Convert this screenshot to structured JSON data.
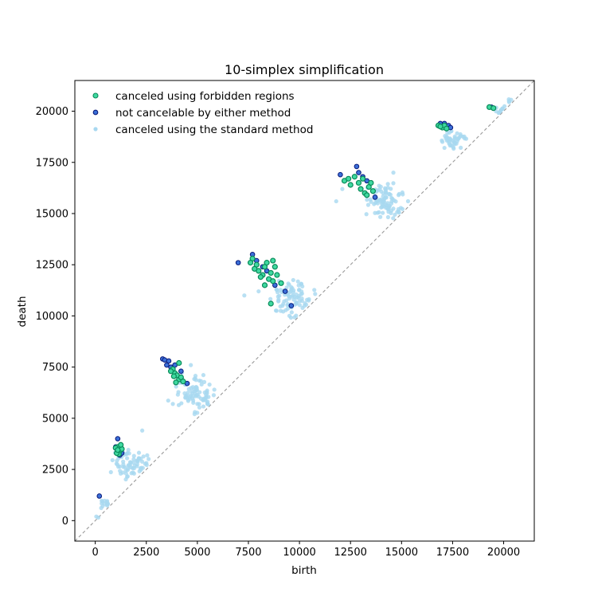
{
  "chart_data": {
    "type": "scatter",
    "title": "10-simplex simplification",
    "xlabel": "birth",
    "ylabel": "death",
    "xlim": [
      -1000,
      21500
    ],
    "ylim": [
      -1000,
      21500
    ],
    "xticks": [
      0,
      2500,
      5000,
      7500,
      10000,
      12500,
      15000,
      17500,
      20000
    ],
    "yticks": [
      0,
      2500,
      5000,
      7500,
      10000,
      12500,
      15000,
      17500,
      20000
    ],
    "grid": false,
    "legend_position": "top-left",
    "diagonal": {
      "style": "dashed",
      "color": "#999999"
    },
    "series": [
      {
        "name": "canceled using the standard method",
        "color": "#a8d8f0",
        "clusters": [
          {
            "center": [
              400,
              850
            ],
            "spread": [
              180,
              150
            ],
            "count": 14
          },
          {
            "center": [
              1700,
              2750
            ],
            "spread": [
              420,
              380
            ],
            "count": 70
          },
          {
            "center": [
              4900,
              6300
            ],
            "spread": [
              450,
              450
            ],
            "count": 85
          },
          {
            "center": [
              9600,
              10900
            ],
            "spread": [
              480,
              450
            ],
            "count": 90
          },
          {
            "center": [
              14100,
              15500
            ],
            "spread": [
              450,
              420
            ],
            "count": 90
          },
          {
            "center": [
              17600,
              18600
            ],
            "spread": [
              300,
              260
            ],
            "count": 45
          },
          {
            "center": [
              19800,
              20000
            ],
            "spread": [
              120,
              110
            ],
            "count": 10
          },
          {
            "center": [
              20300,
              20400
            ],
            "spread": [
              80,
              50
            ],
            "count": 4
          }
        ],
        "points": [
          [
            2300,
            4400
          ],
          [
            50,
            200
          ],
          [
            150,
            150
          ],
          [
            12100,
            16200
          ],
          [
            11800,
            15600
          ],
          [
            7300,
            11000
          ],
          [
            8000,
            11200
          ],
          [
            5000,
            5700
          ],
          [
            3800,
            5700
          ],
          [
            17000,
            18500
          ],
          [
            1900,
            2300
          ],
          [
            14600,
            17000
          ]
        ]
      },
      {
        "name": "canceled using forbidden regions",
        "color": "#14c48c",
        "points": [
          [
            1100,
            3600
          ],
          [
            1000,
            3550
          ],
          [
            1200,
            3400
          ],
          [
            1150,
            3250
          ],
          [
            1050,
            3300
          ],
          [
            1300,
            3500
          ],
          [
            1250,
            3700
          ],
          [
            1100,
            3450
          ],
          [
            3800,
            7400
          ],
          [
            3900,
            7200
          ],
          [
            4100,
            6900
          ],
          [
            4000,
            7100
          ],
          [
            3700,
            7300
          ],
          [
            4300,
            6800
          ],
          [
            4200,
            7000
          ],
          [
            3950,
            6750
          ],
          [
            4100,
            7700
          ],
          [
            3850,
            7050
          ],
          [
            7700,
            12800
          ],
          [
            7900,
            12500
          ],
          [
            8000,
            12200
          ],
          [
            8200,
            12000
          ],
          [
            8300,
            12400
          ],
          [
            8500,
            11800
          ],
          [
            8600,
            12100
          ],
          [
            8700,
            11700
          ],
          [
            8900,
            12000
          ],
          [
            8400,
            12600
          ],
          [
            8100,
            11900
          ],
          [
            7800,
            12300
          ],
          [
            8800,
            12400
          ],
          [
            9100,
            11600
          ],
          [
            8600,
            10600
          ],
          [
            8300,
            11500
          ],
          [
            7600,
            12600
          ],
          [
            8700,
            12700
          ],
          [
            12200,
            16600
          ],
          [
            12500,
            16400
          ],
          [
            12900,
            16500
          ],
          [
            13000,
            16200
          ],
          [
            13200,
            16000
          ],
          [
            13400,
            16300
          ],
          [
            13500,
            16500
          ],
          [
            13600,
            16100
          ],
          [
            13100,
            16700
          ],
          [
            12700,
            16800
          ],
          [
            13300,
            15900
          ],
          [
            12400,
            16700
          ],
          [
            16800,
            19300
          ],
          [
            17000,
            19200
          ],
          [
            17100,
            19300
          ],
          [
            17200,
            19150
          ],
          [
            16900,
            19250
          ],
          [
            19300,
            20200
          ],
          [
            19500,
            20150
          ]
        ]
      },
      {
        "name": "not cancelable by either method",
        "color": "#2234b8",
        "points": [
          [
            200,
            1200
          ],
          [
            1100,
            4000
          ],
          [
            1200,
            3200
          ],
          [
            1000,
            3600
          ],
          [
            1300,
            3300
          ],
          [
            3300,
            7900
          ],
          [
            3400,
            7850
          ],
          [
            3500,
            7600
          ],
          [
            3600,
            7800
          ],
          [
            3700,
            7500
          ],
          [
            3900,
            7600
          ],
          [
            4200,
            7300
          ],
          [
            4500,
            6700
          ],
          [
            7000,
            12600
          ],
          [
            7700,
            13000
          ],
          [
            7900,
            12700
          ],
          [
            8200,
            12400
          ],
          [
            8400,
            12200
          ],
          [
            8800,
            11500
          ],
          [
            9300,
            11200
          ],
          [
            9600,
            10500
          ],
          [
            12000,
            16900
          ],
          [
            12800,
            17300
          ],
          [
            12900,
            17000
          ],
          [
            13100,
            16800
          ],
          [
            13300,
            16600
          ],
          [
            13700,
            15800
          ],
          [
            16900,
            19400
          ],
          [
            17100,
            19400
          ],
          [
            17300,
            19300
          ],
          [
            17400,
            19200
          ],
          [
            19400,
            20200
          ]
        ]
      }
    ]
  }
}
